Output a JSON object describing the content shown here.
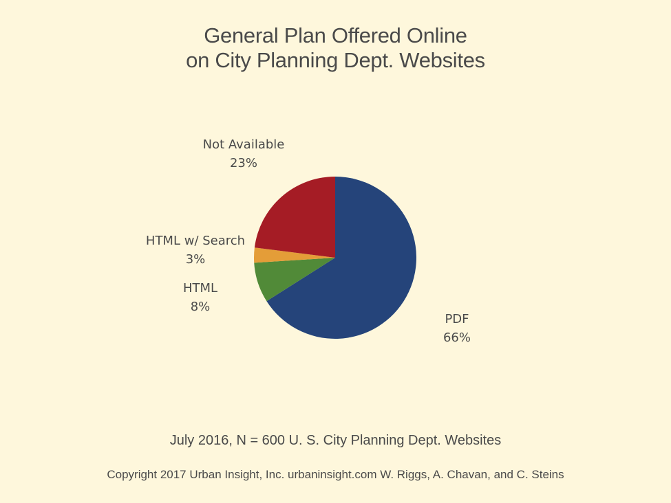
{
  "chart_data": {
    "type": "pie",
    "title": [
      "General Plan Offered Online",
      "on City Planning Dept. Websites"
    ],
    "subtitle": "July 2016, N = 600 U. S. City Planning Dept. Websites",
    "slices": [
      {
        "name": "PDF",
        "value": 66,
        "label": "66%",
        "color": "#25447a"
      },
      {
        "name": "HTML",
        "value": 8,
        "label": "8%",
        "color": "#518a38"
      },
      {
        "name": "HTML w/ Search",
        "value": 3,
        "label": "3%",
        "color": "#e49d38"
      },
      {
        "name": "Not Available",
        "value": 23,
        "label": "23%",
        "color": "#a51c25"
      }
    ],
    "start_angle": "top",
    "direction": "clockwise"
  },
  "footer": {
    "copyright": "Copyright 2017 Urban Insight, Inc. urbaninsight.com  W. Riggs, A. Chavan, and C. Steins"
  }
}
